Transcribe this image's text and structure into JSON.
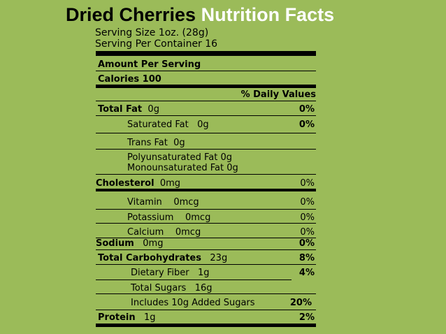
{
  "title": {
    "product": "Dried Cherries",
    "label": "Nutrition Facts"
  },
  "serving": {
    "size": "Serving Size 1oz. (28g)",
    "per_container": "Serving Per Container 16"
  },
  "header": {
    "amount_per_serving": "Amount Per Serving",
    "calories": "Calories 100",
    "daily_values": "% Daily Values"
  },
  "nutrients": [
    {
      "label": "Total Fat",
      "amount": "0g",
      "pct": "0%"
    },
    {
      "label": "Saturated Fat",
      "amount": "0g",
      "pct": "0%"
    },
    {
      "label": "Trans Fat",
      "amount": "0g",
      "pct": ""
    },
    {
      "label": "Polyunsaturated Fat 0g",
      "amount": "",
      "pct": ""
    },
    {
      "label": "Monounsaturated Fat 0g",
      "amount": "",
      "pct": ""
    },
    {
      "label": "Cholesterol",
      "amount": "0mg",
      "pct": "0%"
    },
    {
      "label": "Vitamin",
      "amount": "0mcg",
      "pct": "0%"
    },
    {
      "label": "Potassium",
      "amount": "0mcg",
      "pct": "0%"
    },
    {
      "label": "Calcium",
      "amount": "0mcg",
      "pct": "0%"
    },
    {
      "label": "Sodium",
      "amount": "0mg",
      "pct": "0%"
    },
    {
      "label": "Total Carbohydrates",
      "amount": "23g",
      "pct": "8%"
    },
    {
      "label": "Dietary Fiber",
      "amount": "1g",
      "pct": "4%"
    },
    {
      "label": "Total Sugars",
      "amount": "16g",
      "pct": ""
    },
    {
      "label": "Includes 10g Added Sugars",
      "amount": "",
      "pct": "20%"
    },
    {
      "label": "Protein",
      "amount": "1g",
      "pct": "2%"
    }
  ]
}
